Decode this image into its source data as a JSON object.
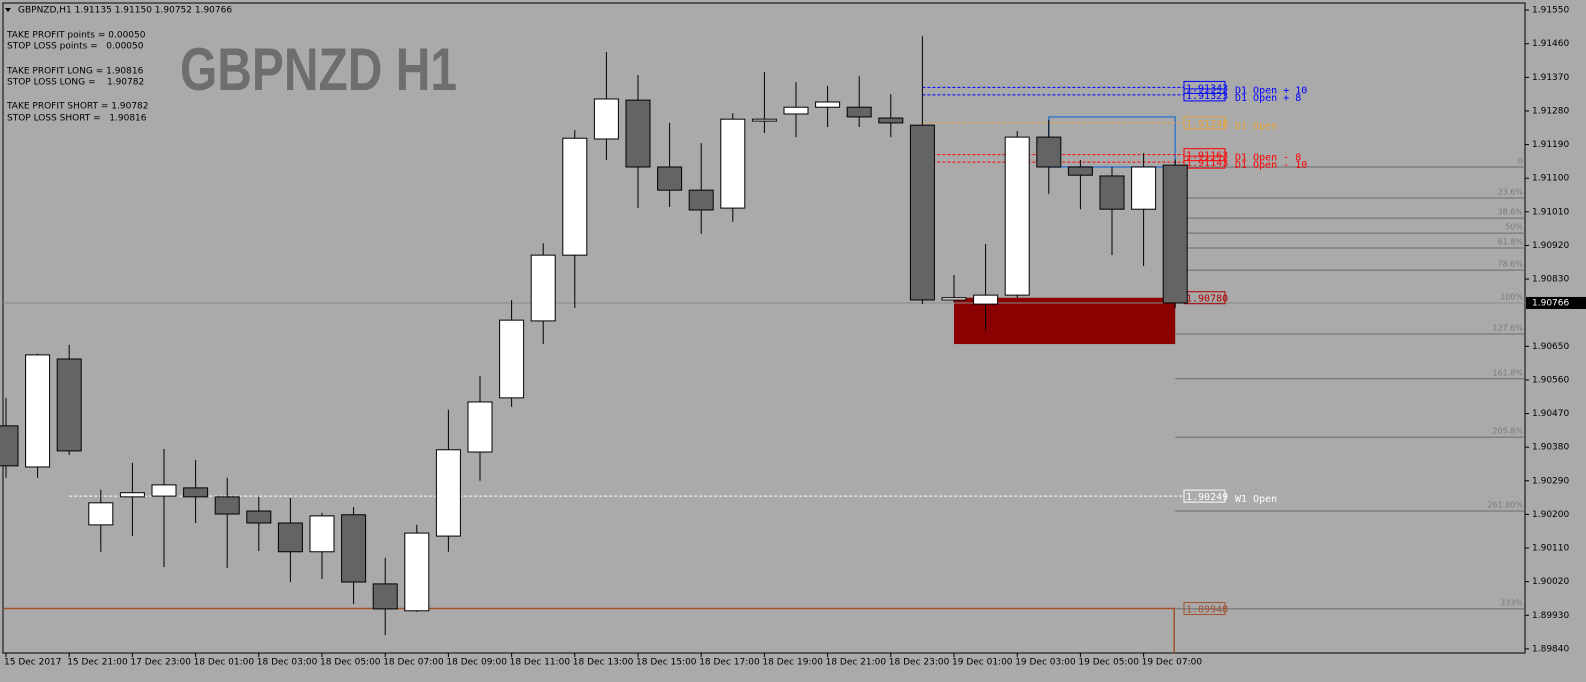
{
  "chart_data": {
    "type": "candlestick",
    "header": "GBPNZD,H1  1.91135 1.91150 1.90752 1.90766",
    "title": "GBPNZD H1",
    "info": [
      "TAKE PROFIT points = 0.00050",
      "STOP LOSS points =   0.00050",
      "TAKE PROFIT LONG = 1.90816",
      "STOP LOSS LONG =    1.90782",
      "TAKE PROFIT SHORT = 1.90782",
      "STOP LOSS SHORT =   1.90816"
    ],
    "categories": [
      "15 Dec 2017",
      null,
      "15 Dec 21:00",
      null,
      "17 Dec 23:00",
      null,
      "18 Dec 01:00",
      null,
      "18 Dec 03:00",
      null,
      "18 Dec 05:00",
      null,
      "18 Dec 07:00",
      null,
      "18 Dec 09:00",
      null,
      "18 Dec 11:00",
      null,
      "18 Dec 13:00",
      null,
      "18 Dec 15:00",
      null,
      "18 Dec 17:00",
      null,
      "18 Dec 19:00",
      null,
      "18 Dec 21:00",
      null,
      "18 Dec 23:00",
      null,
      "19 Dec 01:00",
      null,
      "19 Dec 03:00",
      null,
      "19 Dec 05:00",
      null,
      "19 Dec 07:00",
      null
    ],
    "open": [
      1.90437,
      1.90327,
      1.90616,
      1.90172,
      1.90247,
      1.90249,
      1.90271,
      1.90247,
      1.90209,
      1.90177,
      1.901,
      1.90199,
      1.90014,
      1.89942,
      1.90142,
      1.90367,
      1.90512,
      1.90718,
      1.90894,
      1.91205,
      1.91309,
      1.9113,
      1.91068,
      1.9102,
      1.91253,
      1.91272,
      1.9129,
      1.9129,
      1.91261,
      1.91242,
      1.90774,
      1.90763,
      1.90787,
      1.9121,
      1.9113,
      1.91106,
      1.91017,
      1.91135
    ],
    "high": [
      1.90512,
      1.9063,
      1.90654,
      1.90266,
      1.90338,
      1.90375,
      1.90346,
      1.90298,
      1.90247,
      1.90244,
      1.90204,
      1.9022,
      1.90084,
      1.90172,
      1.9048,
      1.90571,
      1.90774,
      1.90926,
      1.91229,
      1.91438,
      1.91376,
      1.91248,
      1.91194,
      1.91274,
      1.91384,
      1.91357,
      1.91347,
      1.91373,
      1.91325,
      1.9148,
      1.90841,
      1.90924,
      1.91226,
      1.91256,
      1.91149,
      1.9113,
      1.91167,
      1.9115
    ],
    "low": [
      1.90298,
      1.90298,
      1.90359,
      1.901,
      1.90142,
      1.90059,
      1.90177,
      1.90057,
      1.90102,
      1.90019,
      1.90027,
      1.8996,
      1.89877,
      1.89939,
      1.901,
      1.9029,
      1.90488,
      1.90656,
      1.90753,
      1.91149,
      1.9102,
      1.91023,
      1.90951,
      1.90983,
      1.91221,
      1.9121,
      1.91237,
      1.91237,
      1.9121,
      1.90763,
      1.90769,
      1.90691,
      1.90779,
      1.91058,
      1.91017,
      1.90894,
      1.90865,
      1.90752
    ],
    "close": [
      1.9033,
      1.90627,
      1.9037,
      1.90231,
      1.90258,
      1.90279,
      1.90247,
      1.90201,
      1.90177,
      1.901,
      1.90196,
      1.90019,
      1.89947,
      1.9015,
      1.90373,
      1.90501,
      1.9072,
      1.90894,
      1.91207,
      1.91312,
      1.9113,
      1.91068,
      1.91015,
      1.91258,
      1.91258,
      1.9129,
      1.91304,
      1.91264,
      1.91248,
      1.90774,
      1.9078,
      1.90787,
      1.9121,
      1.9113,
      1.91108,
      1.91017,
      1.9113,
      1.90766
    ],
    "up_color": "#ffffff",
    "down_color": "#646464",
    "ylim": [
      1.89829,
      1.91569
    ],
    "yticks": [
      {
        "value": 1.9155,
        "label": "1.91550"
      },
      {
        "value": 1.9146,
        "label": "1.91460"
      },
      {
        "value": 1.9137,
        "label": "1.91370"
      },
      {
        "value": 1.9128,
        "label": "1.91280"
      },
      {
        "value": 1.9119,
        "label": "1.91190"
      },
      {
        "value": 1.911,
        "label": "1.91100"
      },
      {
        "value": 1.9101,
        "label": "1.91010"
      },
      {
        "value": 1.9092,
        "label": "1.90920"
      },
      {
        "value": 1.9083,
        "label": "1.90830"
      },
      {
        "value": 1.9065,
        "label": "1.90650"
      },
      {
        "value": 1.9056,
        "label": "1.90560"
      },
      {
        "value": 1.9047,
        "label": "1.90470"
      },
      {
        "value": 1.9038,
        "label": "1.90380"
      },
      {
        "value": 1.9029,
        "label": "1.90290"
      },
      {
        "value": 1.902,
        "label": "1.90200"
      },
      {
        "value": 1.9011,
        "label": "1.90110"
      },
      {
        "value": 1.9002,
        "label": "1.90020"
      },
      {
        "value": 1.8993,
        "label": "1.89930"
      },
      {
        "value": 1.8984,
        "label": "1.89840"
      }
    ],
    "last_price": {
      "value": 1.90766,
      "label": "1.90766"
    },
    "grid": false,
    "levels": [
      {
        "value": 1.91343,
        "label": "1.91343",
        "name": "D1 Open + 10",
        "color": "#0000ff"
      },
      {
        "value": 1.91323,
        "label": "1.91323",
        "name": "D1 Open + 8",
        "color": "#0000ff"
      },
      {
        "value": 1.91248,
        "label": "1.91248",
        "name": "D1 Open",
        "color": "#e8a53c"
      },
      {
        "value": 1.91163,
        "label": "1.91163",
        "name": "D1 Open - 8",
        "color": "#ff0000"
      },
      {
        "value": 1.91143,
        "label": "1.91143",
        "name": "D1 Open - 10",
        "color": "#ff0000"
      },
      {
        "value": 1.9078,
        "label": "1.90780",
        "color": "#b00000"
      },
      {
        "value": 1.90249,
        "label": "1.90249",
        "name": "W1 Open",
        "color": "#ffffff"
      },
      {
        "value": 1.89948,
        "label": "1.89948",
        "color": "#a0522d"
      }
    ],
    "fib": [
      {
        "value": 1.9113,
        "label": "0"
      },
      {
        "value": 1.91047,
        "label": "23.6%"
      },
      {
        "value": 1.90993,
        "label": "38.6%"
      },
      {
        "value": 1.90953,
        "label": "50%"
      },
      {
        "value": 1.90913,
        "label": "61.8%"
      },
      {
        "value": 1.90854,
        "label": "78.6%"
      },
      {
        "value": 1.90766,
        "label": "100%"
      },
      {
        "value": 1.90683,
        "label": "127.6%"
      },
      {
        "value": 1.90563,
        "label": "161.8%"
      },
      {
        "value": 1.90407,
        "label": "205.8%"
      },
      {
        "value": 1.90209,
        "label": "261.80%"
      },
      {
        "value": 1.89947,
        "label": "333%"
      }
    ],
    "zone": {
      "top": 1.9078,
      "bottom": 1.90656,
      "color": "#8b0000"
    },
    "box": {
      "top": 1.91264,
      "bottom": 1.9113,
      "color": "#3c78c8"
    }
  }
}
